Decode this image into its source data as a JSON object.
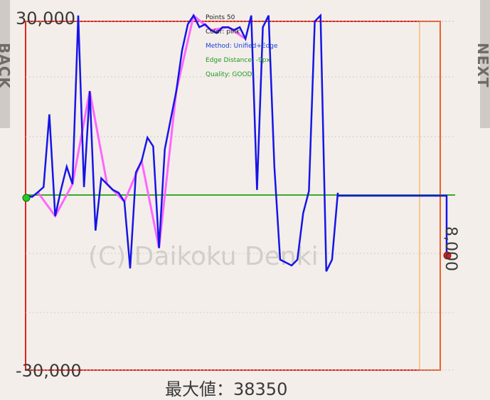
{
  "nav": {
    "back_label": "BACK",
    "next_label": "NEXT"
  },
  "overlay": {
    "points": "Points 50",
    "color": "Color: pink",
    "method": "Method: Unified+Edge",
    "edge_distance": "Edge Distance: -9px",
    "quality": "Quality: GOOD"
  },
  "watermark": "(C) Daikoku Denki",
  "max_value_label": "最大値：38350",
  "colors": {
    "background": "#f3eeea",
    "frame": "#e0231a",
    "zero_line": "#3aaa2a",
    "graph_line": "#1515e6",
    "trace_line": "#ff66ff",
    "orange_box": "#f2a23a"
  },
  "chart_data": {
    "type": "line",
    "title": "",
    "xlabel": "",
    "ylabel": "",
    "ylim": [
      -30000,
      30000
    ],
    "y_tick_labels": [
      "30,000",
      "-30,000"
    ],
    "right_tick_label": "8,000",
    "grid": true,
    "series": [
      {
        "values": [
          0,
          -200,
          600,
          1500,
          14000,
          -3500,
          1000,
          5000,
          2000,
          31000,
          1500,
          18000,
          -6000,
          3000,
          2000,
          1000,
          500,
          -1000,
          -12500,
          4000,
          6000,
          10000,
          8500,
          -9000,
          8000,
          13000,
          18000,
          25000,
          29500,
          31000,
          29000,
          29500,
          28500,
          28000,
          29000,
          29000,
          28500,
          29000,
          27000,
          31000,
          1000,
          29000,
          31000,
          5000,
          -11000,
          -11500,
          -12000,
          -11000,
          -3000,
          800,
          30000,
          31000,
          -13000,
          -11000,
          500,
          0,
          0,
          0,
          0,
          0,
          0,
          -10000
        ]
      }
    ]
  }
}
